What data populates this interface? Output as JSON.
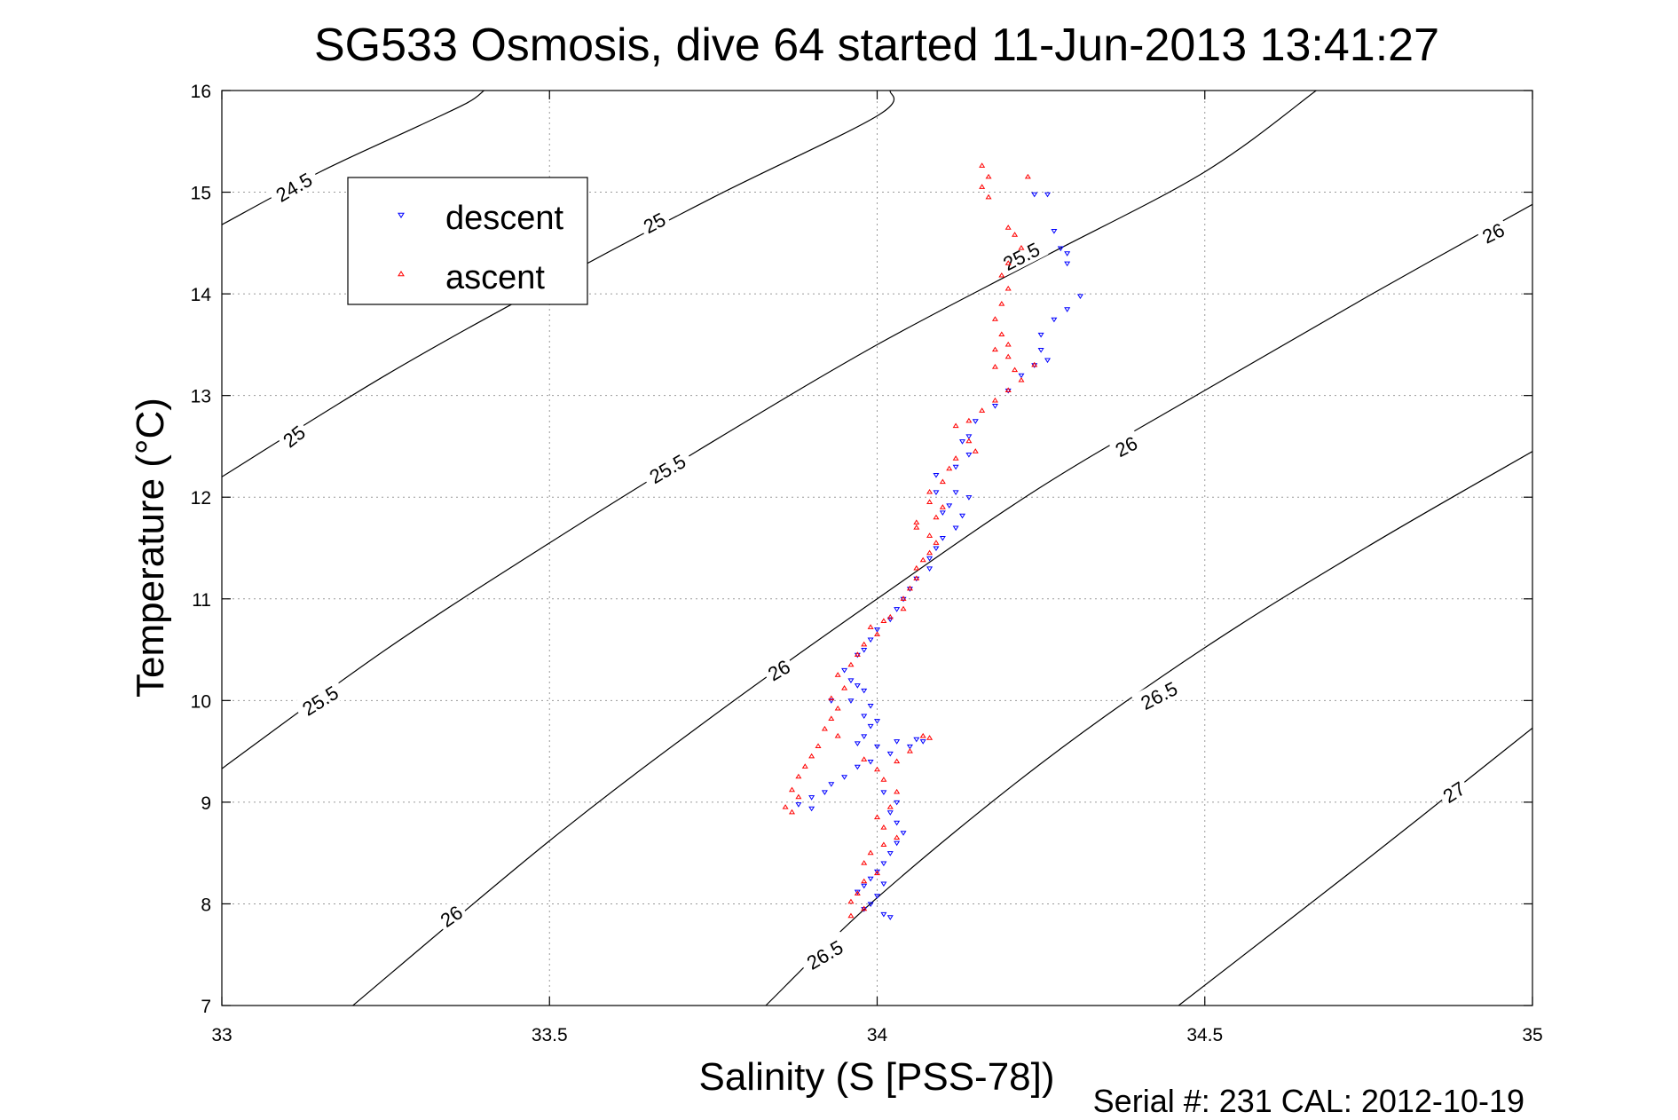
{
  "chart_data": {
    "type": "scatter",
    "title": "SG533 Osmosis, dive 64 started 11-Jun-2013 13:41:27",
    "xlabel": "Salinity (S [PSS-78])",
    "ylabel": "Temperature (°C)",
    "xlim": [
      33,
      35
    ],
    "ylim": [
      7,
      16
    ],
    "xticks": [
      "33",
      "33.5",
      "34",
      "34.5",
      "35"
    ],
    "yticks": [
      "7",
      "8",
      "9",
      "10",
      "11",
      "12",
      "13",
      "14",
      "15",
      "16"
    ],
    "grid": true,
    "legend": {
      "placement": "top-left",
      "entries": [
        {
          "label": "descent",
          "color": "#0000ff",
          "marker": "triangle-down"
        },
        {
          "label": "ascent",
          "color": "#ff0000",
          "marker": "triangle-up"
        }
      ]
    },
    "footer": "Serial #: 231  CAL: 2012-10-19",
    "contours": [
      {
        "level": "24.5",
        "points": [
          [
            33.0,
            14.68
          ],
          [
            33.15,
            15.2
          ],
          [
            33.3,
            15.65
          ],
          [
            33.375,
            15.88
          ],
          [
            33.4,
            16.0
          ]
        ]
      },
      {
        "level": "25",
        "points": [
          [
            33.0,
            12.2
          ],
          [
            33.25,
            13.2
          ],
          [
            33.5,
            14.1
          ],
          [
            33.75,
            14.95
          ],
          [
            34.0,
            15.75
          ],
          [
            34.02,
            16.0
          ]
        ]
      },
      {
        "level": "25.5",
        "points": [
          [
            33.0,
            9.33
          ],
          [
            33.25,
            10.5
          ],
          [
            33.5,
            11.55
          ],
          [
            33.75,
            12.55
          ],
          [
            34.0,
            13.5
          ],
          [
            34.25,
            14.35
          ],
          [
            34.5,
            15.2
          ],
          [
            34.67,
            16.0
          ]
        ]
      },
      {
        "level": "26",
        "points": [
          [
            33.2,
            7.0
          ],
          [
            33.5,
            8.62
          ],
          [
            33.75,
            9.85
          ],
          [
            34.0,
            11.0
          ],
          [
            34.25,
            12.1
          ],
          [
            34.5,
            13.05
          ],
          [
            34.75,
            13.98
          ],
          [
            35.0,
            14.88
          ]
        ]
      },
      {
        "level": "26.5",
        "points": [
          [
            33.83,
            7.0
          ],
          [
            34.0,
            8.06
          ],
          [
            34.25,
            9.38
          ],
          [
            34.5,
            10.52
          ],
          [
            34.75,
            11.52
          ],
          [
            35.0,
            12.45
          ]
        ]
      },
      {
        "level": "27",
        "points": [
          [
            34.46,
            7.0
          ],
          [
            34.75,
            8.45
          ],
          [
            35.0,
            9.73
          ]
        ]
      }
    ],
    "contour_labels": [
      {
        "text": "24.5",
        "x": 33.11,
        "y": 15.05,
        "angle": -30
      },
      {
        "text": "25",
        "x": 33.66,
        "y": 14.7,
        "angle": -28
      },
      {
        "text": "25",
        "x": 33.11,
        "y": 12.6,
        "angle": -38
      },
      {
        "text": "25.5",
        "x": 34.22,
        "y": 14.37,
        "angle": -27
      },
      {
        "text": "25.5",
        "x": 33.68,
        "y": 12.28,
        "angle": -30
      },
      {
        "text": "25.5",
        "x": 33.15,
        "y": 10.0,
        "angle": -32
      },
      {
        "text": "26",
        "x": 34.94,
        "y": 14.6,
        "angle": -26
      },
      {
        "text": "26",
        "x": 34.38,
        "y": 12.5,
        "angle": -27
      },
      {
        "text": "26",
        "x": 33.85,
        "y": 10.3,
        "angle": -30
      },
      {
        "text": "26",
        "x": 33.35,
        "y": 7.88,
        "angle": -35
      },
      {
        "text": "26.5",
        "x": 34.43,
        "y": 10.05,
        "angle": -27
      },
      {
        "text": "26.5",
        "x": 33.92,
        "y": 7.5,
        "angle": -30
      },
      {
        "text": "27",
        "x": 34.88,
        "y": 9.1,
        "angle": -33
      }
    ],
    "series": [
      {
        "name": "descent",
        "color": "#0000ff",
        "marker": "triangle-down",
        "points": [
          [
            34.24,
            14.98
          ],
          [
            34.26,
            14.98
          ],
          [
            34.27,
            14.62
          ],
          [
            34.28,
            14.45
          ],
          [
            34.29,
            14.4
          ],
          [
            34.29,
            14.3
          ],
          [
            34.31,
            13.98
          ],
          [
            34.29,
            13.85
          ],
          [
            34.27,
            13.75
          ],
          [
            34.25,
            13.6
          ],
          [
            34.25,
            13.45
          ],
          [
            34.26,
            13.35
          ],
          [
            34.24,
            13.3
          ],
          [
            34.22,
            13.2
          ],
          [
            34.2,
            13.05
          ],
          [
            34.18,
            12.9
          ],
          [
            34.15,
            12.75
          ],
          [
            34.14,
            12.6
          ],
          [
            34.13,
            12.55
          ],
          [
            34.14,
            12.42
          ],
          [
            34.12,
            12.3
          ],
          [
            34.09,
            12.22
          ],
          [
            34.09,
            12.05
          ],
          [
            34.12,
            12.05
          ],
          [
            34.14,
            12.0
          ],
          [
            34.11,
            11.92
          ],
          [
            34.1,
            11.85
          ],
          [
            34.13,
            11.82
          ],
          [
            34.12,
            11.7
          ],
          [
            34.1,
            11.6
          ],
          [
            34.09,
            11.5
          ],
          [
            34.08,
            11.4
          ],
          [
            34.08,
            11.3
          ],
          [
            34.06,
            11.2
          ],
          [
            34.05,
            11.1
          ],
          [
            34.04,
            11.0
          ],
          [
            34.03,
            10.9
          ],
          [
            34.02,
            10.8
          ],
          [
            34.0,
            10.7
          ],
          [
            33.99,
            10.6
          ],
          [
            33.98,
            10.5
          ],
          [
            33.97,
            10.45
          ],
          [
            33.95,
            10.3
          ],
          [
            33.96,
            10.2
          ],
          [
            33.97,
            10.15
          ],
          [
            33.98,
            10.1
          ],
          [
            33.93,
            10.0
          ],
          [
            33.96,
            10.0
          ],
          [
            33.99,
            9.95
          ],
          [
            33.98,
            9.85
          ],
          [
            34.0,
            9.8
          ],
          [
            33.99,
            9.75
          ],
          [
            33.98,
            9.65
          ],
          [
            33.97,
            9.58
          ],
          [
            34.0,
            9.55
          ],
          [
            34.03,
            9.6
          ],
          [
            34.06,
            9.62
          ],
          [
            34.07,
            9.6
          ],
          [
            34.05,
            9.55
          ],
          [
            34.02,
            9.48
          ],
          [
            33.99,
            9.4
          ],
          [
            33.97,
            9.35
          ],
          [
            33.95,
            9.25
          ],
          [
            33.93,
            9.18
          ],
          [
            33.92,
            9.1
          ],
          [
            33.9,
            9.05
          ],
          [
            33.88,
            8.98
          ],
          [
            33.9,
            8.94
          ],
          [
            34.01,
            9.1
          ],
          [
            34.03,
            9.0
          ],
          [
            34.02,
            8.9
          ],
          [
            34.03,
            8.8
          ],
          [
            34.04,
            8.7
          ],
          [
            34.03,
            8.6
          ],
          [
            34.02,
            8.5
          ],
          [
            34.01,
            8.4
          ],
          [
            34.0,
            8.32
          ],
          [
            33.99,
            8.25
          ],
          [
            33.98,
            8.18
          ],
          [
            33.97,
            8.12
          ],
          [
            34.0,
            8.08
          ],
          [
            34.01,
            8.2
          ],
          [
            33.99,
            8.0
          ],
          [
            33.98,
            7.95
          ],
          [
            34.01,
            7.9
          ],
          [
            34.02,
            7.87
          ]
        ]
      },
      {
        "name": "ascent",
        "color": "#ff0000",
        "marker": "triangle-up",
        "points": [
          [
            34.16,
            15.26
          ],
          [
            34.17,
            15.15
          ],
          [
            34.16,
            15.05
          ],
          [
            34.17,
            14.95
          ],
          [
            34.23,
            15.15
          ],
          [
            34.2,
            14.65
          ],
          [
            34.21,
            14.58
          ],
          [
            34.22,
            14.45
          ],
          [
            34.2,
            14.3
          ],
          [
            34.19,
            14.18
          ],
          [
            34.2,
            14.05
          ],
          [
            34.19,
            13.9
          ],
          [
            34.18,
            13.75
          ],
          [
            34.19,
            13.6
          ],
          [
            34.2,
            13.5
          ],
          [
            34.18,
            13.45
          ],
          [
            34.2,
            13.38
          ],
          [
            34.18,
            13.28
          ],
          [
            34.21,
            13.25
          ],
          [
            34.24,
            13.3
          ],
          [
            34.22,
            13.15
          ],
          [
            34.2,
            13.05
          ],
          [
            34.18,
            12.95
          ],
          [
            34.16,
            12.85
          ],
          [
            34.14,
            12.75
          ],
          [
            34.12,
            12.7
          ],
          [
            34.14,
            12.55
          ],
          [
            34.15,
            12.45
          ],
          [
            34.12,
            12.38
          ],
          [
            34.11,
            12.28
          ],
          [
            34.1,
            12.15
          ],
          [
            34.08,
            12.05
          ],
          [
            34.08,
            11.95
          ],
          [
            34.1,
            11.9
          ],
          [
            34.09,
            11.8
          ],
          [
            34.06,
            11.75
          ],
          [
            34.06,
            11.7
          ],
          [
            34.08,
            11.62
          ],
          [
            34.09,
            11.55
          ],
          [
            34.08,
            11.45
          ],
          [
            34.07,
            11.38
          ],
          [
            34.06,
            11.3
          ],
          [
            34.06,
            11.2
          ],
          [
            34.05,
            11.1
          ],
          [
            34.04,
            11.0
          ],
          [
            34.04,
            10.9
          ],
          [
            34.02,
            10.82
          ],
          [
            34.01,
            10.78
          ],
          [
            33.99,
            10.72
          ],
          [
            34.0,
            10.65
          ],
          [
            33.98,
            10.55
          ],
          [
            33.97,
            10.45
          ],
          [
            33.96,
            10.35
          ],
          [
            33.94,
            10.25
          ],
          [
            33.95,
            10.12
          ],
          [
            33.93,
            10.02
          ],
          [
            33.94,
            9.92
          ],
          [
            33.93,
            9.82
          ],
          [
            33.92,
            9.72
          ],
          [
            33.94,
            9.65
          ],
          [
            33.91,
            9.55
          ],
          [
            33.9,
            9.45
          ],
          [
            33.89,
            9.35
          ],
          [
            33.88,
            9.25
          ],
          [
            33.87,
            9.12
          ],
          [
            33.88,
            9.05
          ],
          [
            33.86,
            8.95
          ],
          [
            33.87,
            8.9
          ],
          [
            34.07,
            9.65
          ],
          [
            34.08,
            9.63
          ],
          [
            34.05,
            9.5
          ],
          [
            34.03,
            9.4
          ],
          [
            34.0,
            9.32
          ],
          [
            33.98,
            9.42
          ],
          [
            34.01,
            9.22
          ],
          [
            34.03,
            9.1
          ],
          [
            34.02,
            8.95
          ],
          [
            34.0,
            8.85
          ],
          [
            34.01,
            8.75
          ],
          [
            34.03,
            8.65
          ],
          [
            34.01,
            8.58
          ],
          [
            33.99,
            8.5
          ],
          [
            33.98,
            8.4
          ],
          [
            34.0,
            8.3
          ],
          [
            33.98,
            8.22
          ],
          [
            33.97,
            8.1
          ],
          [
            33.96,
            8.02
          ],
          [
            33.98,
            7.95
          ],
          [
            33.96,
            7.88
          ]
        ]
      }
    ]
  }
}
